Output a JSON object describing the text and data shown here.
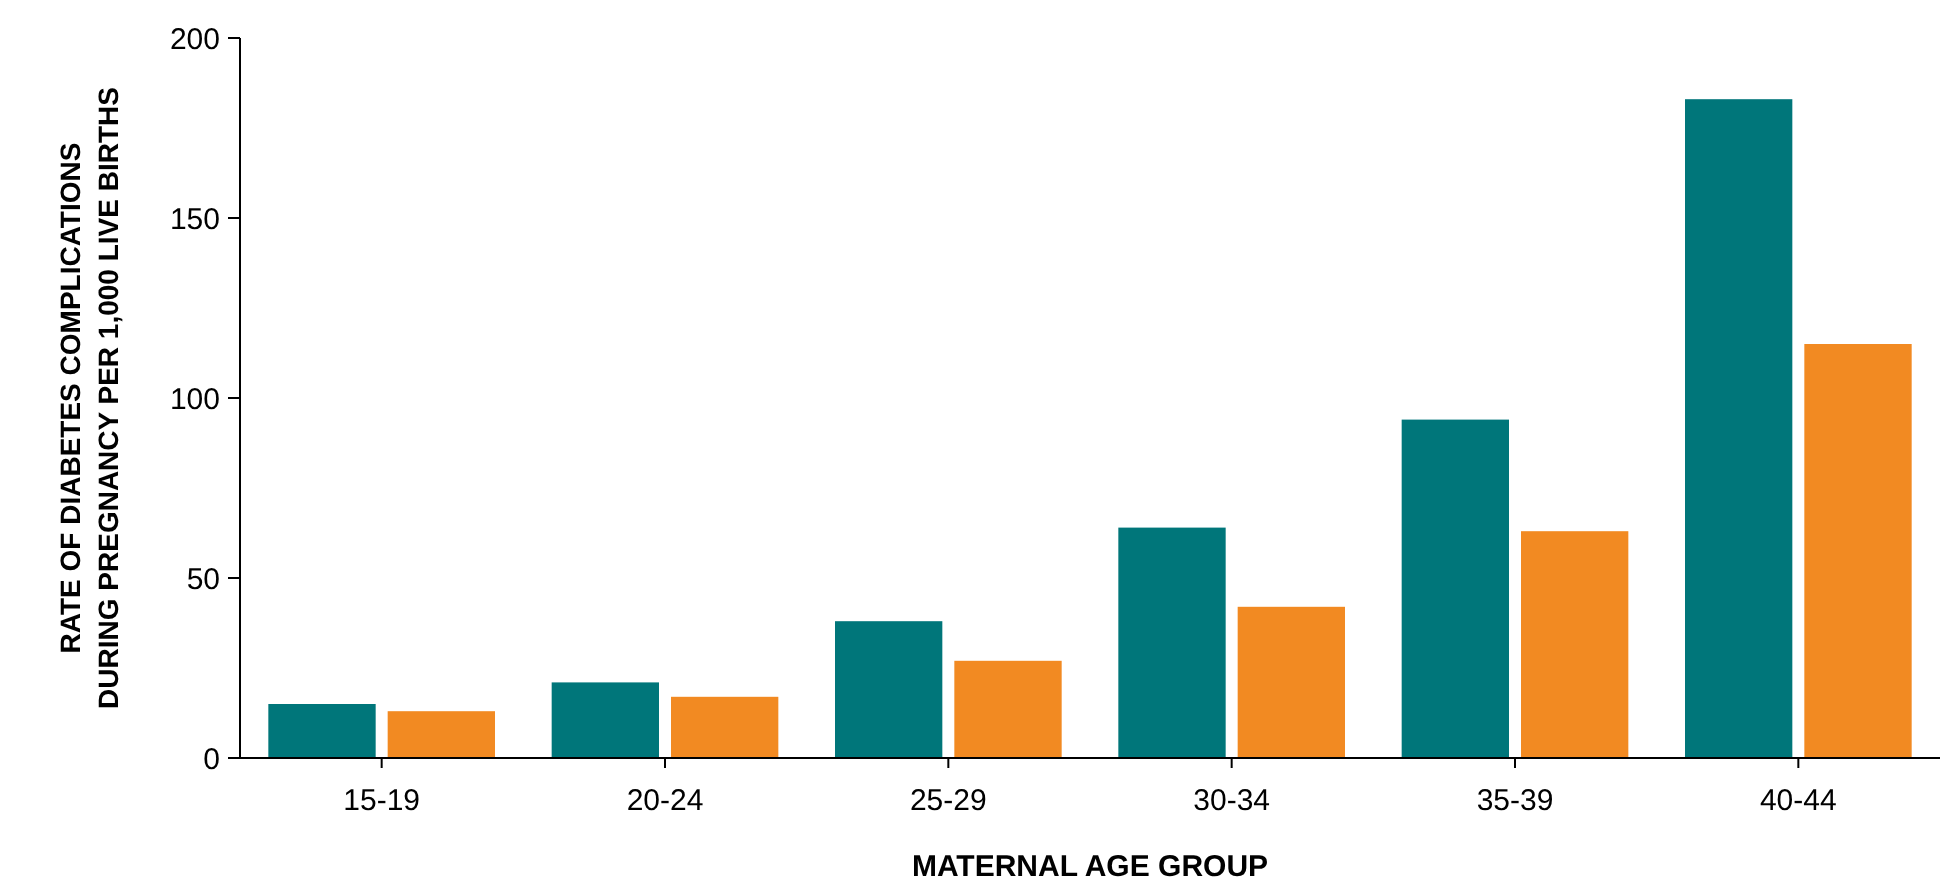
{
  "chart_data": {
    "type": "bar",
    "xlabel": "MATERNAL AGE GROUP",
    "ylabel": "RATE OF DIABETES COMPLICATIONS\nDURING PREGNANCY PER 1,000 LIVE BIRTHS",
    "categories": [
      "15-19",
      "20-24",
      "25-29",
      "30-34",
      "35-39",
      "40-44"
    ],
    "series": [
      {
        "color": "#00767a",
        "values": [
          15,
          21,
          38,
          64,
          94,
          183
        ]
      },
      {
        "color": "#f28a22",
        "values": [
          13,
          17,
          27,
          42,
          63,
          115
        ]
      }
    ],
    "ylim": [
      0,
      200
    ],
    "yticks": [
      0,
      50,
      100,
      150,
      200
    ]
  }
}
